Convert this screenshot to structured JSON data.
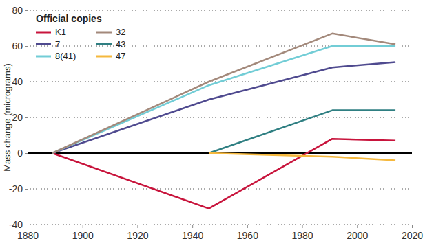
{
  "chart_data": {
    "type": "line",
    "y_label": "Mass change (micrograms)",
    "legend_title": "Official copies",
    "legend": "top-left",
    "grid": true,
    "x": [
      1889,
      1946,
      1991,
      2014
    ],
    "xlim": [
      1880,
      2020
    ],
    "xticks": [
      1880,
      1900,
      1920,
      1940,
      1960,
      1980,
      2000,
      2020
    ],
    "ylim": [
      -40,
      80
    ],
    "yticks": [
      -40,
      -20,
      0,
      20,
      40,
      60,
      80
    ],
    "series": [
      {
        "name": "K1",
        "color": "#c8143c",
        "values": [
          0,
          -31,
          8,
          7
        ]
      },
      {
        "name": "7",
        "color": "#4f4a8f",
        "values": [
          0,
          30,
          48,
          51
        ]
      },
      {
        "name": "8(41)",
        "color": "#72cdd6",
        "values": [
          0,
          38,
          60,
          60
        ]
      },
      {
        "name": "32",
        "color": "#a3897b",
        "values": [
          0,
          40,
          67,
          61
        ]
      },
      {
        "name": "43",
        "color": "#2f7f82",
        "values": [
          null,
          0,
          24,
          24
        ]
      },
      {
        "name": "47",
        "color": "#f5b83d",
        "values": [
          null,
          0,
          -2,
          -4
        ]
      }
    ]
  }
}
